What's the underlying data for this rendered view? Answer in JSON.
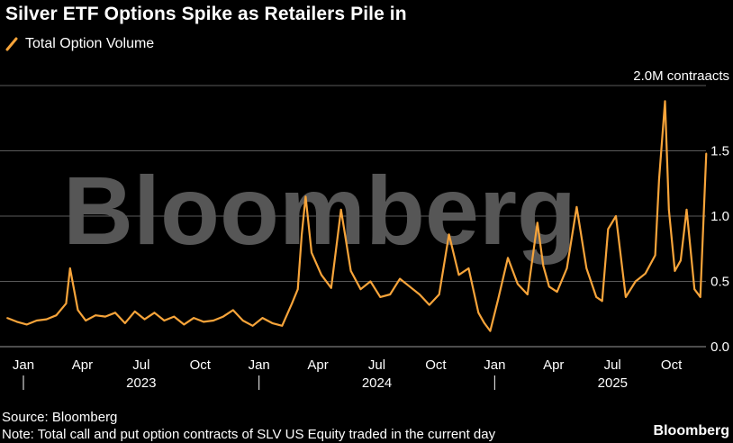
{
  "header": {
    "title": "Silver ETF Options Spike as Retailers Pile in",
    "legend_label": "Total Option Volume"
  },
  "footer": {
    "source": "Source: Bloomberg",
    "note": "Note: Total call and put option contracts of SLV US Equity traded in the current day",
    "brand": "Bloomberg"
  },
  "watermark": "Bloomberg",
  "colors": {
    "series": "#f7a43a",
    "grid": "#5a5a5a",
    "background": "#000000",
    "text": "#ffffff",
    "watermark": "#565656"
  },
  "chart_data": {
    "type": "line",
    "title": "Silver ETF Options Spike as Retailers Pile in",
    "y_unit_label": "2.0M contraacts",
    "y_ticks": [
      {
        "value": 2.0,
        "label": "2.0M contraacts"
      },
      {
        "value": 1.5,
        "label": "1.5"
      },
      {
        "value": 1.0,
        "label": "1.0"
      },
      {
        "value": 0.5,
        "label": "0.5"
      },
      {
        "value": 0.0,
        "label": "0.0"
      }
    ],
    "ylim": [
      0,
      2.0
    ],
    "x_range_months": [
      0,
      36
    ],
    "x_month_ticks": [
      {
        "month": 0,
        "label": "Jan"
      },
      {
        "month": 3,
        "label": "Apr"
      },
      {
        "month": 6,
        "label": "Jul"
      },
      {
        "month": 9,
        "label": "Oct"
      },
      {
        "month": 12,
        "label": "Jan"
      },
      {
        "month": 15,
        "label": "Apr"
      },
      {
        "month": 18,
        "label": "Jul"
      },
      {
        "month": 21,
        "label": "Oct"
      },
      {
        "month": 24,
        "label": "Jan"
      },
      {
        "month": 27,
        "label": "Apr"
      },
      {
        "month": 30,
        "label": "Jul"
      },
      {
        "month": 33,
        "label": "Oct"
      }
    ],
    "x_years": [
      {
        "month": 0,
        "label": "2023"
      },
      {
        "month": 12,
        "label": "2024"
      },
      {
        "month": 24,
        "label": "2025"
      }
    ],
    "series": [
      {
        "name": "Total Option Volume",
        "unit": "million contracts",
        "x_month": [
          0,
          0.5,
          1,
          1.5,
          2,
          2.5,
          3,
          3.2,
          3.6,
          4,
          4.5,
          5,
          5.5,
          6,
          6.5,
          7,
          7.5,
          8,
          8.5,
          9,
          9.5,
          10,
          10.5,
          11,
          11.5,
          12,
          12.5,
          13,
          13.5,
          14,
          14.5,
          14.8,
          15,
          15.2,
          15.5,
          16,
          16.5,
          17,
          17.5,
          18,
          18.5,
          19,
          19.5,
          20,
          20.5,
          21,
          21.5,
          22,
          22.5,
          23,
          23.5,
          24,
          24.3,
          24.6,
          25,
          25.5,
          26,
          26.5,
          27,
          27.3,
          27.6,
          28,
          28.5,
          29,
          29.5,
          30,
          30.3,
          30.6,
          31,
          31.5,
          32,
          32.5,
          33,
          33.2,
          33.5,
          33.7,
          34,
          34.3,
          34.6,
          35,
          35.3,
          35.6
        ],
        "values": [
          0.22,
          0.19,
          0.17,
          0.2,
          0.21,
          0.24,
          0.33,
          0.6,
          0.28,
          0.2,
          0.24,
          0.23,
          0.26,
          0.18,
          0.27,
          0.21,
          0.26,
          0.2,
          0.23,
          0.17,
          0.22,
          0.19,
          0.2,
          0.23,
          0.28,
          0.2,
          0.16,
          0.22,
          0.18,
          0.16,
          0.33,
          0.44,
          0.86,
          1.15,
          0.72,
          0.55,
          0.45,
          1.05,
          0.58,
          0.44,
          0.5,
          0.38,
          0.4,
          0.52,
          0.46,
          0.4,
          0.32,
          0.4,
          0.86,
          0.55,
          0.6,
          0.26,
          0.18,
          0.12,
          0.36,
          0.68,
          0.48,
          0.4,
          0.95,
          0.62,
          0.46,
          0.42,
          0.6,
          1.07,
          0.6,
          0.38,
          0.35,
          0.9,
          1.0,
          0.38,
          0.5,
          0.56,
          0.7,
          1.28,
          1.88,
          1.05,
          0.58,
          0.66,
          1.05,
          0.44,
          0.38,
          1.48
        ]
      }
    ]
  }
}
